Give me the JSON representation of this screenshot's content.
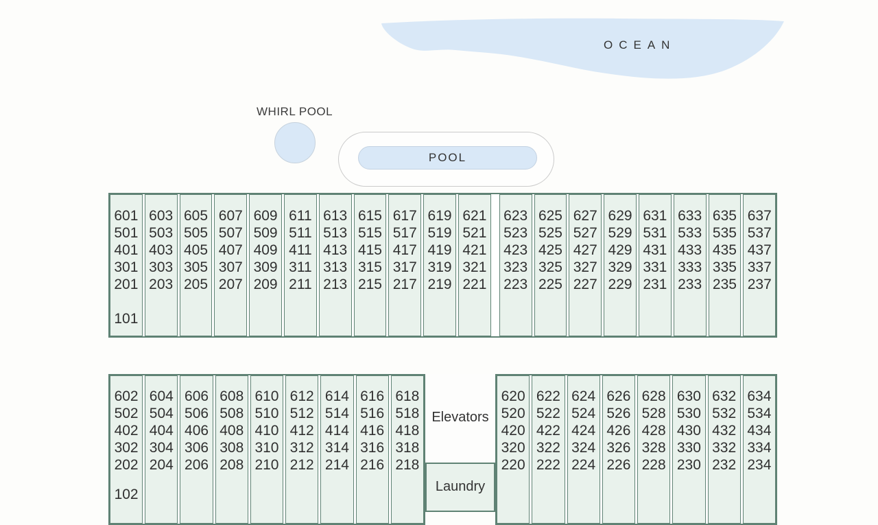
{
  "labels": {
    "ocean": "OCEAN",
    "whirl_pool": "WHIRL POOL",
    "pool": "POOL",
    "elevators": "Elevators",
    "laundry": "Laundry"
  },
  "colors": {
    "water": "#d9e8f7",
    "room_fill": "#e9f2ec",
    "building_border": "#5f8274",
    "page_background": "#fdfdfb",
    "text": "#303030"
  },
  "buildings": {
    "north": {
      "extra_gap_before_index": 11,
      "columns": [
        {
          "rooms": [
            "601",
            "501",
            "401",
            "301",
            "201"
          ],
          "ground": "101"
        },
        {
          "rooms": [
            "603",
            "503",
            "403",
            "303",
            "203"
          ]
        },
        {
          "rooms": [
            "605",
            "505",
            "405",
            "305",
            "205"
          ]
        },
        {
          "rooms": [
            "607",
            "507",
            "407",
            "307",
            "207"
          ]
        },
        {
          "rooms": [
            "609",
            "509",
            "409",
            "309",
            "209"
          ]
        },
        {
          "rooms": [
            "611",
            "511",
            "411",
            "311",
            "211"
          ]
        },
        {
          "rooms": [
            "613",
            "513",
            "413",
            "313",
            "213"
          ]
        },
        {
          "rooms": [
            "615",
            "515",
            "415",
            "315",
            "215"
          ]
        },
        {
          "rooms": [
            "617",
            "517",
            "417",
            "317",
            "217"
          ]
        },
        {
          "rooms": [
            "619",
            "519",
            "419",
            "319",
            "219"
          ]
        },
        {
          "rooms": [
            "621",
            "521",
            "421",
            "321",
            "221"
          ]
        },
        {
          "rooms": [
            "623",
            "523",
            "423",
            "323",
            "223"
          ]
        },
        {
          "rooms": [
            "625",
            "525",
            "425",
            "325",
            "225"
          ]
        },
        {
          "rooms": [
            "627",
            "527",
            "427",
            "327",
            "227"
          ]
        },
        {
          "rooms": [
            "629",
            "529",
            "429",
            "329",
            "229"
          ]
        },
        {
          "rooms": [
            "631",
            "531",
            "431",
            "331",
            "231"
          ]
        },
        {
          "rooms": [
            "633",
            "533",
            "433",
            "333",
            "233"
          ]
        },
        {
          "rooms": [
            "635",
            "535",
            "435",
            "335",
            "235"
          ]
        },
        {
          "rooms": [
            "637",
            "537",
            "437",
            "337",
            "237"
          ]
        }
      ]
    },
    "south_west": {
      "columns": [
        {
          "rooms": [
            "602",
            "502",
            "402",
            "302",
            "202"
          ],
          "ground": "102"
        },
        {
          "rooms": [
            "604",
            "504",
            "404",
            "304",
            "204"
          ]
        },
        {
          "rooms": [
            "606",
            "506",
            "406",
            "306",
            "206"
          ]
        },
        {
          "rooms": [
            "608",
            "508",
            "408",
            "308",
            "208"
          ]
        },
        {
          "rooms": [
            "610",
            "510",
            "410",
            "310",
            "210"
          ]
        },
        {
          "rooms": [
            "612",
            "512",
            "412",
            "312",
            "212"
          ]
        },
        {
          "rooms": [
            "614",
            "514",
            "414",
            "314",
            "214"
          ]
        },
        {
          "rooms": [
            "616",
            "516",
            "416",
            "316",
            "216"
          ]
        },
        {
          "rooms": [
            "618",
            "518",
            "418",
            "318",
            "218"
          ]
        }
      ]
    },
    "south_east": {
      "columns": [
        {
          "rooms": [
            "620",
            "520",
            "420",
            "320",
            "220"
          ]
        },
        {
          "rooms": [
            "622",
            "522",
            "422",
            "322",
            "222"
          ]
        },
        {
          "rooms": [
            "624",
            "524",
            "424",
            "324",
            "224"
          ]
        },
        {
          "rooms": [
            "626",
            "526",
            "426",
            "326",
            "226"
          ]
        },
        {
          "rooms": [
            "628",
            "528",
            "428",
            "328",
            "228"
          ]
        },
        {
          "rooms": [
            "630",
            "530",
            "430",
            "330",
            "230"
          ]
        },
        {
          "rooms": [
            "632",
            "532",
            "432",
            "332",
            "232"
          ]
        },
        {
          "rooms": [
            "634",
            "534",
            "434",
            "334",
            "234"
          ]
        }
      ]
    }
  }
}
